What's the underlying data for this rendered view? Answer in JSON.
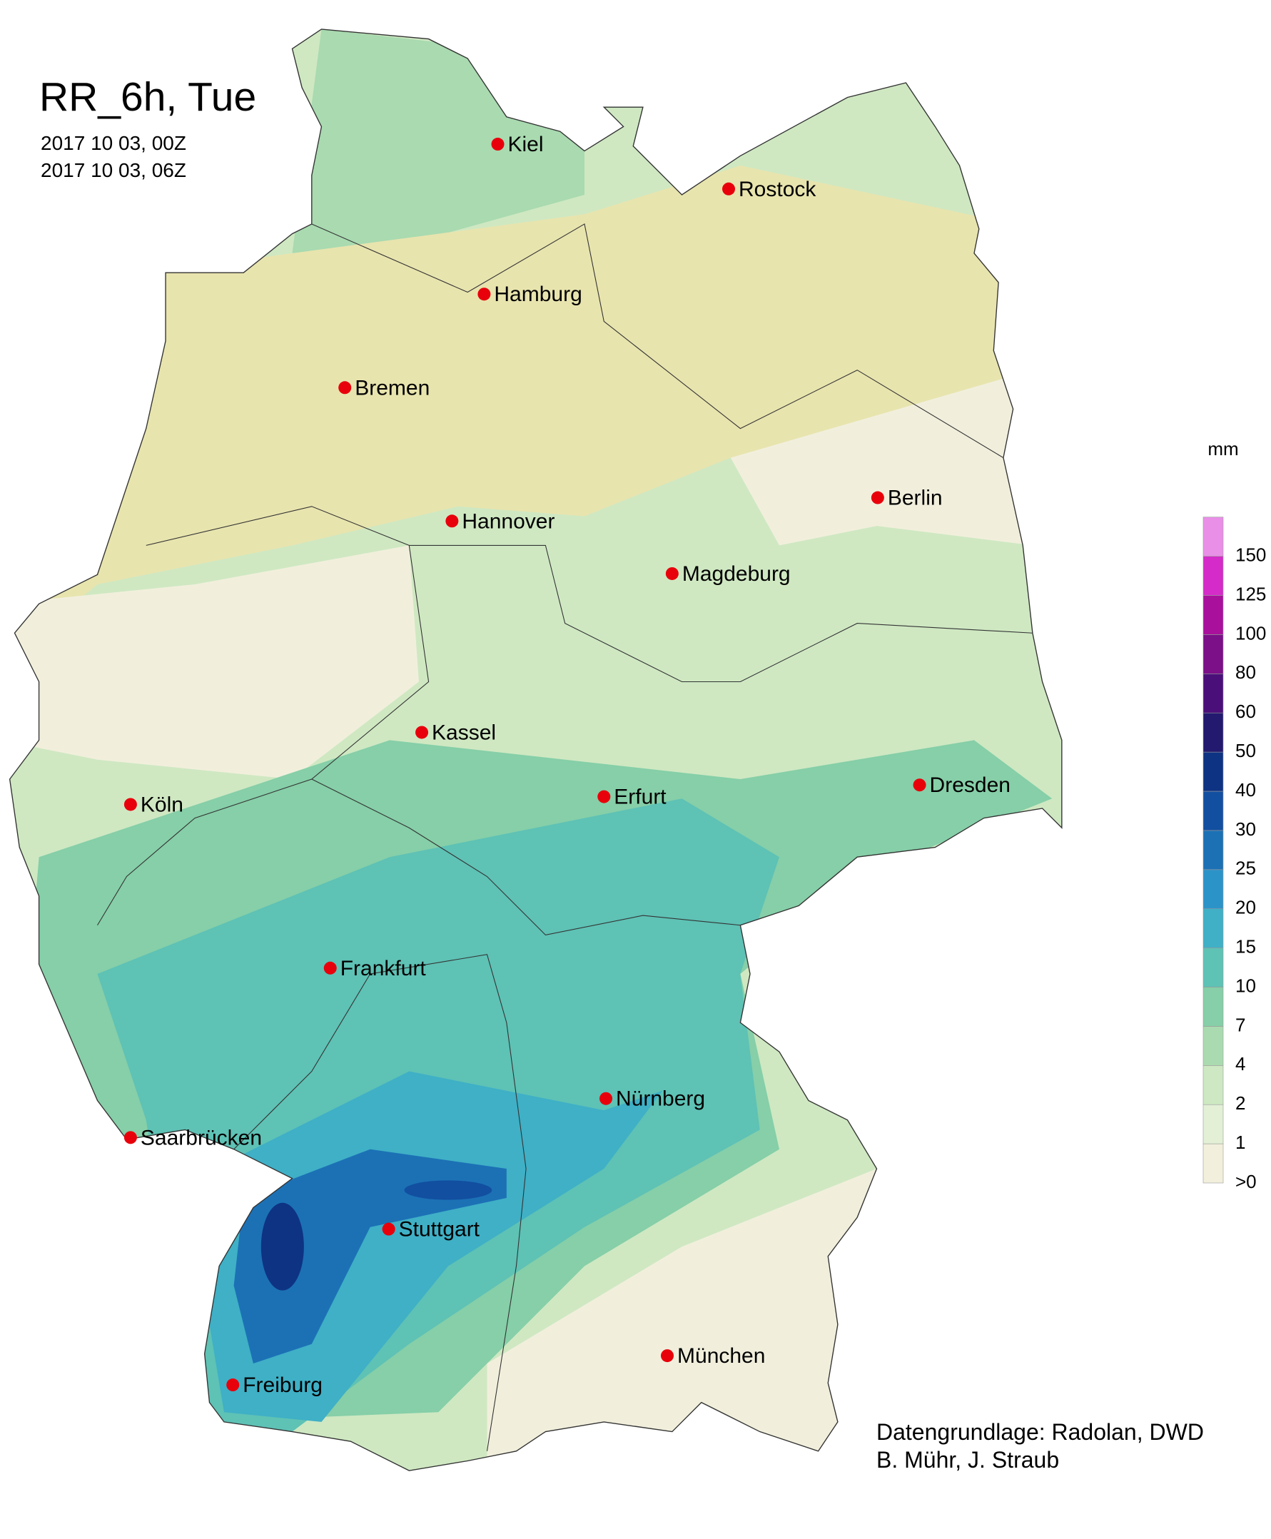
{
  "header": {
    "title": "RR_6h, Tue",
    "lines": [
      "2017 10 03, 00Z",
      "2017 10 03, 06Z"
    ]
  },
  "cities": [
    {
      "name": "Kiel"
    },
    {
      "name": "Rostock"
    },
    {
      "name": "Hamburg"
    },
    {
      "name": "Bremen"
    },
    {
      "name": "Berlin"
    },
    {
      "name": "Hannover"
    },
    {
      "name": "Magdeburg"
    },
    {
      "name": "Kassel"
    },
    {
      "name": "Köln"
    },
    {
      "name": "Erfurt"
    },
    {
      "name": "Dresden"
    },
    {
      "name": "Frankfurt"
    },
    {
      "name": "Nürnberg"
    },
    {
      "name": "Saarbrücken"
    },
    {
      "name": "Stuttgart"
    },
    {
      "name": "München"
    },
    {
      "name": "Freiburg"
    }
  ],
  "legend": {
    "unit": "mm",
    "levels": [
      {
        "value": 0,
        "label": ">0"
      },
      1,
      2,
      4,
      7,
      10,
      15,
      20,
      25,
      30,
      40,
      50,
      60,
      80,
      100,
      125,
      150
    ],
    "colors": [
      "#f2f0dc",
      "#e3f0d6",
      "#cde8c2",
      "#aadbb0",
      "#86cfa8",
      "#5ec2b5",
      "#3fb0c6",
      "#2c93c8",
      "#1c71b5",
      "#124fa0",
      "#0e3383",
      "#23196e",
      "#4b0f7a",
      "#7b1088",
      "#a9119c",
      "#d52bc8",
      "#e98fe7"
    ]
  },
  "credits": [
    "Datengrundlage: Radolan, DWD",
    "B. Mühr, J. Straub"
  ]
}
